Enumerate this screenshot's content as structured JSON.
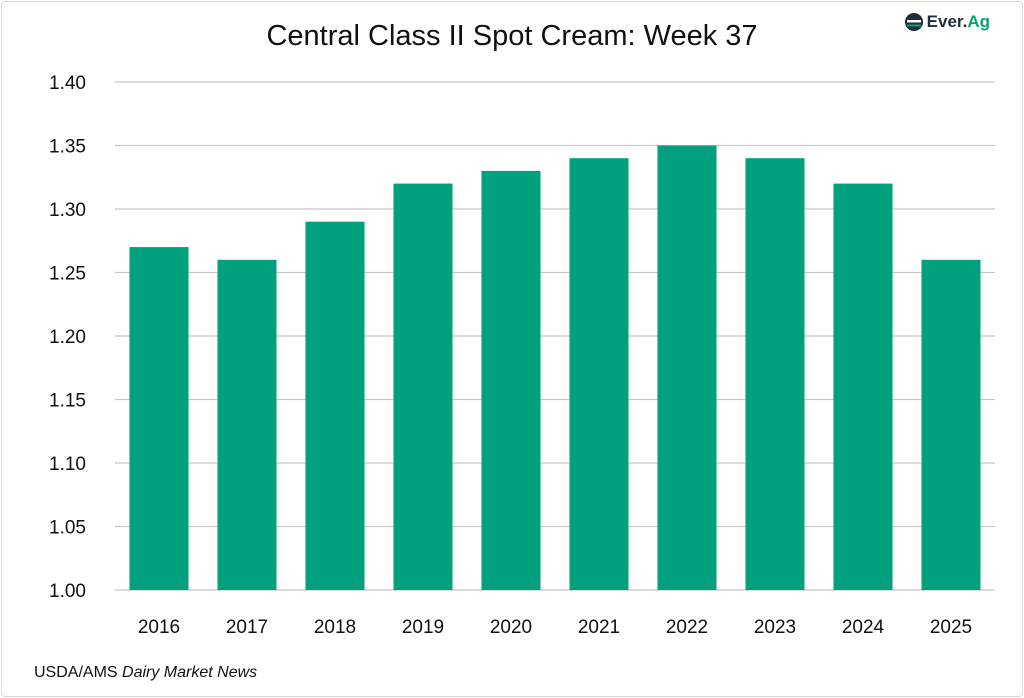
{
  "chart_data": {
    "type": "bar",
    "title": "Central Class II Spot Cream: Week 37",
    "categories": [
      "2016",
      "2017",
      "2018",
      "2019",
      "2020",
      "2021",
      "2022",
      "2023",
      "2024",
      "2025"
    ],
    "values": [
      1.27,
      1.26,
      1.29,
      1.32,
      1.33,
      1.34,
      1.35,
      1.34,
      1.32,
      1.26
    ],
    "xlabel": "",
    "ylabel": "",
    "ylim": [
      1.0,
      1.4
    ],
    "yticks": [
      "1.00",
      "1.05",
      "1.10",
      "1.15",
      "1.20",
      "1.25",
      "1.30",
      "1.35",
      "1.40"
    ],
    "grid": true,
    "bar_color": "#02a07c"
  },
  "logo": {
    "text_ever": "Ever.",
    "text_ag": "Ag"
  },
  "source": {
    "prefix": "USDA/AMS ",
    "italic": "Dairy Market News"
  }
}
